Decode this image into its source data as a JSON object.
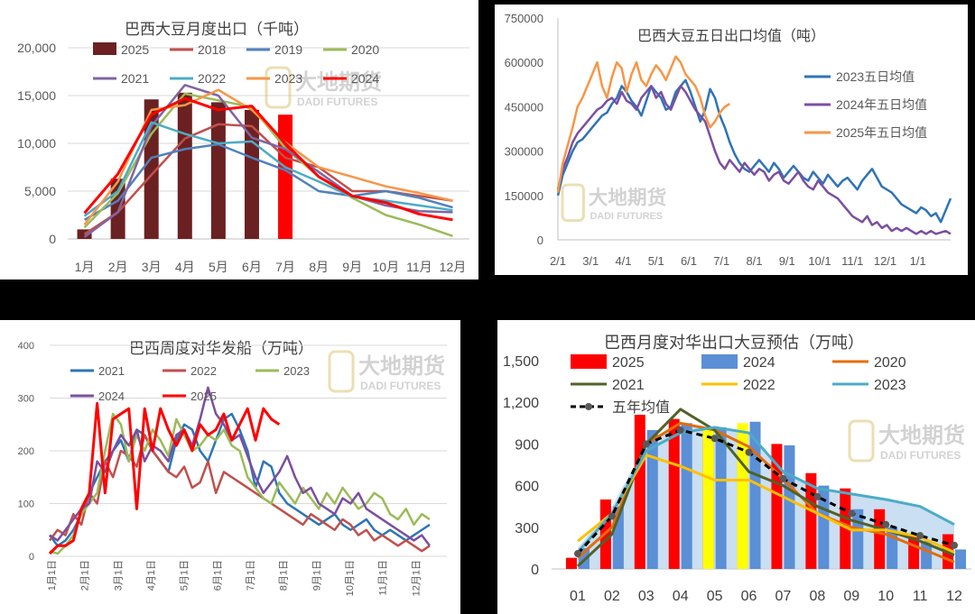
{
  "chart_data": [
    {
      "id": "p1",
      "type": "bar",
      "title": "巴西大豆月度出口（千吨）",
      "categories": [
        "1月",
        "2月",
        "3月",
        "4月",
        "5月",
        "6月",
        "7月",
        "8月",
        "9月",
        "10月",
        "11月",
        "12月"
      ],
      "ylim": [
        0,
        20000
      ],
      "yticks": [
        "0",
        "5,000",
        "10,000",
        "15,000",
        "20,000"
      ],
      "ytick_values": [
        0,
        5000,
        10000,
        15000,
        20000
      ],
      "grid": true,
      "bar_series": {
        "name": "2025",
        "color": "#6B2121",
        "highlight_color": "#FF0000",
        "highlight_index": 6,
        "values": [
          1000,
          6300,
          14600,
          15300,
          14300,
          13500,
          13000
        ]
      },
      "series": [
        {
          "name": "2018",
          "color": "#C0504D",
          "values": [
            500,
            2800,
            6700,
            10500,
            12000,
            11800,
            8500,
            7500,
            5000,
            5000,
            4500,
            4000
          ]
        },
        {
          "name": "2019",
          "color": "#4F81BD",
          "values": [
            2000,
            4000,
            8500,
            9400,
            9900,
            8500,
            7200,
            5000,
            4500,
            5000,
            4300,
            3300
          ]
        },
        {
          "name": "2020",
          "color": "#9BBB59",
          "values": [
            1200,
            4800,
            11000,
            15200,
            14500,
            13800,
            9500,
            6500,
            4300,
            2500,
            1500,
            300
          ]
        },
        {
          "name": "2021",
          "color": "#8064A2",
          "values": [
            200,
            2800,
            11800,
            16100,
            15000,
            10600,
            9400,
            7000,
            4500,
            3500,
            2900,
            2800
          ]
        },
        {
          "name": "2022",
          "color": "#4BACC6",
          "values": [
            2400,
            5000,
            12200,
            11000,
            10000,
            10200,
            7500,
            6000,
            4400,
            4000,
            3500,
            3000
          ]
        },
        {
          "name": "2023",
          "color": "#F79646",
          "values": [
            1500,
            6000,
            13500,
            14000,
            15600,
            13500,
            10100,
            7500,
            6500,
            5500,
            4800,
            4000
          ]
        },
        {
          "name": "2024",
          "color": "#FF0000",
          "values": [
            2700,
            6800,
            13000,
            14700,
            13500,
            13900,
            10000,
            6500,
            4500,
            3800,
            2600,
            2000
          ]
        }
      ],
      "legend": [
        "2025",
        "2018",
        "2019",
        "2020",
        "2021",
        "2022",
        "2023",
        "2024"
      ]
    },
    {
      "id": "p2",
      "type": "line",
      "title": "巴西大豆五日出口均值（吨）",
      "xticks": [
        "2/1",
        "3/1",
        "4/1",
        "5/1",
        "6/1",
        "7/1",
        "8/1",
        "9/1",
        "10/1",
        "11/1",
        "12/1",
        "1/1"
      ],
      "ylim": [
        0,
        750000
      ],
      "yticks": [
        "0",
        "150000",
        "300000",
        "450000",
        "600000",
        "750000"
      ],
      "ytick_values": [
        0,
        150000,
        300000,
        450000,
        600000,
        750000
      ],
      "grid": false,
      "series": [
        {
          "name": "2023五日均值",
          "color": "#2F74B5",
          "x_start": 0,
          "x_step": 0.2,
          "values": [
            150000,
            220000,
            260000,
            300000,
            330000,
            340000,
            360000,
            380000,
            400000,
            420000,
            430000,
            460000,
            480000,
            520000,
            500000,
            470000,
            450000,
            420000,
            470000,
            520000,
            500000,
            480000,
            440000,
            450000,
            500000,
            520000,
            540000,
            500000,
            450000,
            400000,
            440000,
            510000,
            480000,
            420000,
            380000,
            330000,
            290000,
            260000,
            240000,
            230000,
            250000,
            270000,
            250000,
            230000,
            260000,
            240000,
            210000,
            230000,
            250000,
            230000,
            210000,
            200000,
            230000,
            210000,
            190000,
            220000,
            200000,
            180000,
            200000,
            210000,
            190000,
            170000,
            200000,
            220000,
            240000,
            210000,
            180000,
            170000,
            160000,
            140000,
            120000,
            110000,
            100000,
            90000,
            110000,
            100000,
            80000,
            90000,
            60000,
            100000,
            140000
          ]
        },
        {
          "name": "2024年五日均值",
          "color": "#7B4FA0",
          "x_start": 0,
          "x_step": 0.2,
          "values": [
            170000,
            240000,
            280000,
            330000,
            360000,
            380000,
            400000,
            420000,
            440000,
            450000,
            470000,
            480000,
            460000,
            500000,
            470000,
            460000,
            440000,
            480000,
            500000,
            520000,
            480000,
            500000,
            460000,
            440000,
            480000,
            520000,
            500000,
            470000,
            440000,
            420000,
            400000,
            350000,
            300000,
            260000,
            240000,
            270000,
            250000,
            230000,
            260000,
            240000,
            220000,
            240000,
            230000,
            200000,
            220000,
            230000,
            200000,
            190000,
            210000,
            230000,
            200000,
            180000,
            170000,
            200000,
            180000,
            160000,
            150000,
            140000,
            120000,
            100000,
            80000,
            70000,
            60000,
            80000,
            50000,
            60000,
            40000,
            50000,
            30000,
            40000,
            30000,
            40000,
            30000,
            20000,
            30000,
            20000,
            30000,
            20000,
            25000,
            30000,
            20000
          ]
        },
        {
          "name": "2025年五日均值",
          "color": "#F79646",
          "x_start": 0,
          "x_step": 0.2,
          "values": [
            160000,
            260000,
            320000,
            380000,
            450000,
            480000,
            520000,
            560000,
            600000,
            520000,
            480000,
            550000,
            600000,
            580000,
            500000,
            560000,
            600000,
            540000,
            520000,
            560000,
            590000,
            570000,
            540000,
            580000,
            620000,
            600000,
            560000,
            540000,
            520000,
            480000,
            420000,
            380000,
            400000,
            430000,
            450000,
            460000
          ]
        }
      ],
      "legend": [
        "2023五日均值",
        "2024年五日均值",
        "2025年五日均值"
      ]
    },
    {
      "id": "p3",
      "type": "line",
      "title": "巴西周度对华发船（万吨）",
      "xticks": [
        "1月1日",
        "2月1日",
        "3月1日",
        "4月1日",
        "5月1日",
        "6月1日",
        "7月1日",
        "8月1日",
        "9月1日",
        "10月1日",
        "11月1日",
        "12月1日"
      ],
      "ylim": [
        0,
        400
      ],
      "yticks": [
        "0",
        "100",
        "200",
        "300",
        "400"
      ],
      "ytick_values": [
        0,
        100,
        200,
        300,
        400
      ],
      "grid": true,
      "series": [
        {
          "name": "2021",
          "color": "#2E75B6",
          "x_start": 0,
          "x_step": 0.23,
          "values": [
            40,
            20,
            30,
            50,
            80,
            120,
            150,
            180,
            200,
            220,
            180,
            240,
            230,
            200,
            180,
            160,
            220,
            250,
            240,
            200,
            180,
            220,
            260,
            270,
            240,
            200,
            130,
            180,
            170,
            120,
            100,
            90,
            80,
            70,
            60,
            70,
            80,
            60,
            50,
            60,
            70,
            50,
            40,
            50,
            40,
            30,
            40,
            50,
            60
          ]
        },
        {
          "name": "2022",
          "color": "#C0504D",
          "x_start": 0,
          "x_step": 0.23,
          "values": [
            30,
            50,
            40,
            80,
            60,
            120,
            100,
            180,
            150,
            200,
            190,
            170,
            230,
            200,
            180,
            160,
            150,
            170,
            130,
            140,
            180,
            120,
            160,
            150,
            140,
            130,
            120,
            110,
            100,
            90,
            80,
            70,
            60,
            80,
            70,
            60,
            50,
            70,
            60,
            40,
            50,
            30,
            40,
            30,
            20,
            30,
            20,
            10,
            20
          ]
        },
        {
          "name": "2023",
          "color": "#9BBB59",
          "x_start": 0,
          "x_step": 0.23,
          "values": [
            10,
            5,
            20,
            40,
            80,
            100,
            120,
            200,
            270,
            250,
            180,
            230,
            200,
            240,
            220,
            190,
            260,
            230,
            200,
            210,
            230,
            220,
            240,
            210,
            200,
            150,
            130,
            110,
            100,
            140,
            120,
            100,
            130,
            110,
            90,
            120,
            100,
            130,
            110,
            90,
            100,
            120,
            110,
            80,
            70,
            90,
            60,
            80,
            70
          ]
        },
        {
          "name": "2024",
          "color": "#7B4FA0",
          "x_start": 0,
          "x_step": 0.23,
          "values": [
            40,
            30,
            50,
            70,
            90,
            100,
            180,
            160,
            200,
            230,
            210,
            240,
            180,
            210,
            200,
            180,
            230,
            240,
            210,
            260,
            320,
            270,
            250,
            220,
            230,
            190,
            150,
            120,
            140,
            160,
            190,
            150,
            120,
            130,
            100,
            90,
            80,
            110,
            100,
            120,
            90,
            80,
            70,
            60,
            50,
            40,
            30,
            40,
            20
          ]
        },
        {
          "name": "2025",
          "color": "#FF0000",
          "x_start": 0,
          "x_step": 0.23,
          "values": [
            5,
            20,
            20,
            30,
            90,
            120,
            290,
            120,
            260,
            270,
            280,
            90,
            280,
            200,
            280,
            240,
            210,
            240,
            200,
            250,
            230,
            240,
            270,
            220,
            250,
            280,
            220,
            280,
            260,
            250
          ]
        }
      ],
      "legend": [
        "2021",
        "2022",
        "2023",
        "2024",
        "2025"
      ]
    },
    {
      "id": "p4",
      "type": "bar",
      "title": "巴西月度对华出口大豆预估（万吨）",
      "categories": [
        "01",
        "02",
        "03",
        "04",
        "05",
        "06",
        "07",
        "08",
        "09",
        "10",
        "11",
        "12"
      ],
      "ylim": [
        0,
        1500
      ],
      "yticks": [
        "0",
        "300",
        "600",
        "900",
        "1,200",
        "1,500"
      ],
      "ytick_values": [
        0,
        300,
        600,
        900,
        1200,
        1500
      ],
      "grid": false,
      "bar_series": [
        {
          "name": "2025",
          "color": "#FF0000",
          "values": [
            80,
            500,
            1110,
            1080,
            1000,
            1000,
            900,
            690,
            580,
            430,
            250,
            250
          ]
        },
        {
          "name": "2024",
          "color": "#5B8FD6",
          "values": [
            150,
            450,
            1000,
            1050,
            1020,
            1060,
            890,
            600,
            430,
            300,
            200,
            140
          ]
        }
      ],
      "yellow_bars": {
        "color": "#FFFF00",
        "indices": [
          4,
          5
        ],
        "values": [
          1010,
          1050
        ]
      },
      "area": {
        "name": "2023-range",
        "color": "#BDD7EE",
        "upper": [
          150,
          450,
          900,
          1050,
          1020,
          980,
          700,
          580,
          540,
          500,
          450,
          320
        ]
      },
      "series": [
        {
          "name": "2020",
          "color": "#E36C0A",
          "values": [
            80,
            300,
            900,
            1050,
            1000,
            880,
            650,
            400,
            300,
            250,
            150,
            50
          ]
        },
        {
          "name": "2021",
          "color": "#4F6228",
          "values": [
            20,
            250,
            900,
            1150,
            1000,
            700,
            600,
            450,
            350,
            280,
            200,
            100
          ]
        },
        {
          "name": "2022",
          "color": "#FFC000",
          "values": [
            200,
            400,
            820,
            740,
            640,
            640,
            520,
            400,
            280,
            280,
            230,
            120
          ]
        },
        {
          "name": "2023",
          "color": "#4BACC6",
          "values": [
            120,
            400,
            850,
            980,
            1020,
            980,
            700,
            580,
            540,
            500,
            450,
            320
          ]
        }
      ],
      "dashed_series": {
        "name": "五年均值",
        "color": "#000000",
        "values": [
          110,
          380,
          900,
          1000,
          940,
          840,
          650,
          520,
          400,
          320,
          240,
          170
        ]
      },
      "legend": [
        "2025",
        "2024",
        "2020",
        "2021",
        "2022",
        "2023",
        "五年均值"
      ]
    }
  ],
  "watermark": {
    "cn": "大地期货",
    "en": "DADI FUTURES"
  }
}
